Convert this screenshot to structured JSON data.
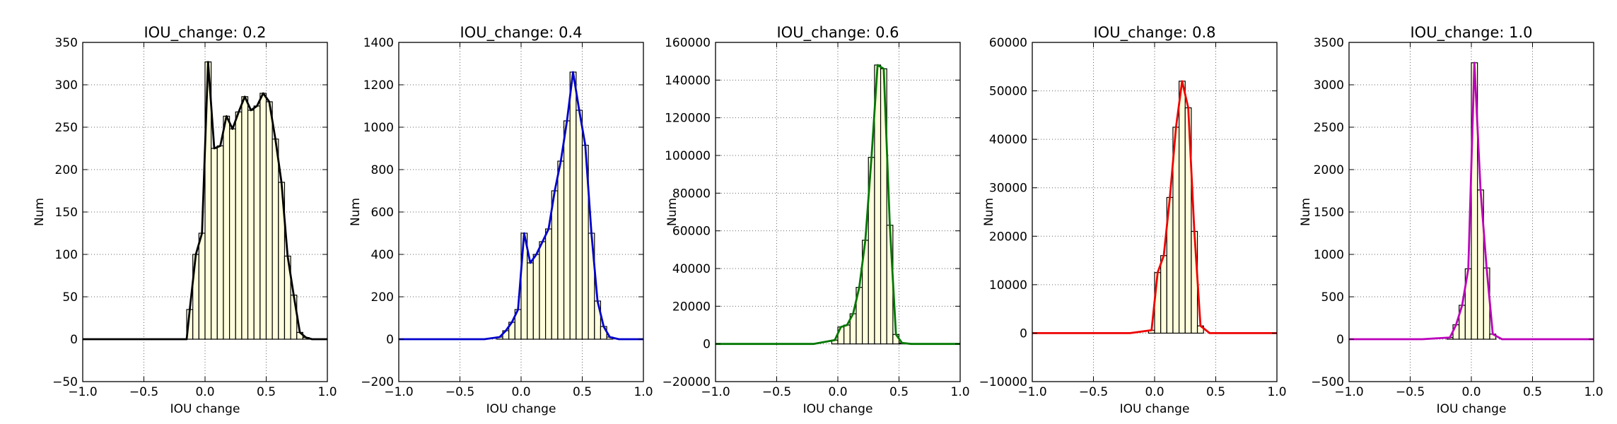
{
  "chart_data": [
    {
      "type": "bar",
      "title": "IOU_change: 0.2",
      "xlabel": "IOU change",
      "ylabel": "Num",
      "xlim": [
        -1.0,
        1.0
      ],
      "ylim": [
        -50,
        350
      ],
      "xticks": [
        -1.0,
        -0.5,
        0.0,
        0.5,
        1.0
      ],
      "xtick_labels": [
        "−1.0",
        "−0.5",
        "0.0",
        "0.5",
        "1.0"
      ],
      "yticks": [
        -50,
        0,
        50,
        100,
        150,
        200,
        250,
        300,
        350
      ],
      "ytick_labels": [
        "−50",
        "0",
        "50",
        "100",
        "150",
        "200",
        "250",
        "300",
        "350"
      ],
      "grid": true,
      "bin_width": 0.05,
      "bin_centers": [
        -0.125,
        -0.075,
        -0.025,
        0.025,
        0.075,
        0.125,
        0.175,
        0.225,
        0.275,
        0.325,
        0.375,
        0.425,
        0.475,
        0.525,
        0.575,
        0.625,
        0.675,
        0.725,
        0.775,
        0.825
      ],
      "values": [
        35,
        100,
        125,
        327,
        225,
        228,
        263,
        248,
        268,
        286,
        270,
        275,
        290,
        280,
        236,
        185,
        98,
        52,
        8,
        2
      ],
      "curve_x": [
        -1.0,
        -0.15,
        -0.125,
        -0.075,
        -0.025,
        0.025,
        0.075,
        0.125,
        0.175,
        0.225,
        0.275,
        0.325,
        0.375,
        0.425,
        0.475,
        0.525,
        0.575,
        0.625,
        0.675,
        0.725,
        0.775,
        0.825,
        0.875,
        1.0
      ],
      "curve_y": [
        0,
        0,
        35,
        100,
        125,
        327,
        225,
        228,
        263,
        248,
        268,
        286,
        270,
        275,
        290,
        280,
        236,
        185,
        98,
        52,
        8,
        2,
        0,
        0
      ],
      "line_color": "#000000",
      "bar_color": "#ffffdd"
    },
    {
      "type": "bar",
      "title": "IOU_change: 0.4",
      "xlabel": "IOU change",
      "ylabel": "Num",
      "xlim": [
        -1.0,
        1.0
      ],
      "ylim": [
        -200,
        1400
      ],
      "xticks": [
        -1.0,
        -0.5,
        0.0,
        0.5,
        1.0
      ],
      "xtick_labels": [
        "−1.0",
        "−0.5",
        "0.0",
        "0.5",
        "1.0"
      ],
      "yticks": [
        -200,
        0,
        200,
        400,
        600,
        800,
        1000,
        1200,
        1400
      ],
      "ytick_labels": [
        "−200",
        "0",
        "200",
        "400",
        "600",
        "800",
        "1000",
        "1200",
        "1400"
      ],
      "grid": true,
      "bin_width": 0.05,
      "bin_centers": [
        -0.175,
        -0.125,
        -0.075,
        -0.025,
        0.025,
        0.075,
        0.125,
        0.175,
        0.225,
        0.275,
        0.325,
        0.375,
        0.425,
        0.475,
        0.525,
        0.575,
        0.625,
        0.675,
        0.725
      ],
      "values": [
        10,
        40,
        80,
        140,
        500,
        360,
        400,
        460,
        520,
        700,
        840,
        1030,
        1260,
        1080,
        915,
        500,
        180,
        60,
        10
      ],
      "curve_x": [
        -1.0,
        -0.3,
        -0.175,
        -0.125,
        -0.075,
        -0.025,
        0.025,
        0.075,
        0.125,
        0.175,
        0.225,
        0.275,
        0.325,
        0.375,
        0.425,
        0.475,
        0.525,
        0.575,
        0.625,
        0.675,
        0.725,
        0.8,
        1.0
      ],
      "curve_y": [
        0,
        0,
        10,
        40,
        80,
        140,
        500,
        360,
        400,
        460,
        520,
        700,
        840,
        1030,
        1260,
        1080,
        915,
        500,
        180,
        60,
        10,
        0,
        0
      ],
      "line_color": "#0000cc",
      "bar_color": "#ffffdd"
    },
    {
      "type": "bar",
      "title": "IOU_change: 0.6",
      "xlabel": "IOU change",
      "ylabel": "Num",
      "xlim": [
        -1.0,
        1.0
      ],
      "ylim": [
        -20000,
        160000
      ],
      "xticks": [
        -1.0,
        -0.5,
        0.0,
        0.5,
        1.0
      ],
      "xtick_labels": [
        "−1.0",
        "−0.5",
        "0.0",
        "0.5",
        "1.0"
      ],
      "yticks": [
        -20000,
        0,
        20000,
        40000,
        60000,
        80000,
        100000,
        120000,
        140000,
        160000
      ],
      "ytick_labels": [
        "−20000",
        "0",
        "20000",
        "40000",
        "60000",
        "80000",
        "100000",
        "120000",
        "140000",
        "160000"
      ],
      "grid": true,
      "bin_width": 0.05,
      "bin_centers": [
        -0.025,
        0.025,
        0.075,
        0.125,
        0.175,
        0.225,
        0.275,
        0.325,
        0.375,
        0.425,
        0.475,
        0.525
      ],
      "values": [
        2000,
        9000,
        10000,
        16000,
        30000,
        55000,
        99000,
        148000,
        146000,
        63000,
        5000,
        500
      ],
      "curve_x": [
        -1.0,
        -0.2,
        -0.025,
        0.025,
        0.075,
        0.125,
        0.175,
        0.225,
        0.275,
        0.325,
        0.375,
        0.425,
        0.475,
        0.525,
        0.6,
        1.0
      ],
      "curve_y": [
        0,
        0,
        2000,
        9000,
        10000,
        16000,
        30000,
        55000,
        99000,
        148000,
        146000,
        63000,
        5000,
        500,
        0,
        0
      ],
      "line_color": "#007700",
      "bar_color": "#ffffdd"
    },
    {
      "type": "bar",
      "title": "IOU_change: 0.8",
      "xlabel": "IOU change",
      "ylabel": "Num",
      "xlim": [
        -1.0,
        1.0
      ],
      "ylim": [
        -10000,
        60000
      ],
      "xticks": [
        -1.0,
        -0.5,
        0.0,
        0.5,
        1.0
      ],
      "xtick_labels": [
        "−1.0",
        "−0.5",
        "0.0",
        "0.5",
        "1.0"
      ],
      "yticks": [
        -10000,
        0,
        10000,
        20000,
        30000,
        40000,
        50000,
        60000
      ],
      "ytick_labels": [
        "−10000",
        "0",
        "10000",
        "20000",
        "30000",
        "40000",
        "50000",
        "60000"
      ],
      "grid": true,
      "bin_width": 0.05,
      "bin_centers": [
        -0.025,
        0.025,
        0.075,
        0.125,
        0.175,
        0.225,
        0.275,
        0.325,
        0.375
      ],
      "values": [
        600,
        12500,
        16000,
        28000,
        42500,
        52000,
        46500,
        21000,
        1500
      ],
      "curve_x": [
        -1.0,
        -0.2,
        -0.025,
        0.025,
        0.075,
        0.125,
        0.175,
        0.225,
        0.275,
        0.325,
        0.375,
        0.45,
        1.0
      ],
      "curve_y": [
        0,
        0,
        600,
        12500,
        16000,
        28000,
        42500,
        52000,
        46500,
        21000,
        1500,
        0,
        0
      ],
      "line_color": "#ee0000",
      "bar_color": "#ffffdd"
    },
    {
      "type": "bar",
      "title": "IOU_change: 1.0",
      "xlabel": "IOU change",
      "ylabel": "Num",
      "xlim": [
        -1.0,
        1.0
      ],
      "ylim": [
        -500,
        3500
      ],
      "xticks": [
        -1.0,
        -0.5,
        0.0,
        0.5,
        1.0
      ],
      "xtick_labels": [
        "−1.0",
        "−0.5",
        "0.0",
        "0.5",
        "1.0"
      ],
      "yticks": [
        -500,
        0,
        500,
        1000,
        1500,
        2000,
        2500,
        3000,
        3500
      ],
      "ytick_labels": [
        "−500",
        "0",
        "500",
        "1000",
        "1500",
        "2000",
        "2500",
        "3000",
        "3500"
      ],
      "grid": true,
      "bin_width": 0.05,
      "bin_centers": [
        -0.175,
        -0.125,
        -0.075,
        -0.025,
        0.025,
        0.075,
        0.125,
        0.175
      ],
      "values": [
        20,
        170,
        400,
        830,
        3260,
        1760,
        840,
        60
      ],
      "curve_x": [
        -1.0,
        -0.4,
        -0.175,
        -0.125,
        -0.075,
        -0.025,
        0.025,
        0.075,
        0.125,
        0.175,
        0.25,
        1.0
      ],
      "curve_y": [
        0,
        0,
        20,
        170,
        400,
        830,
        3260,
        1760,
        840,
        60,
        0,
        0
      ],
      "line_color": "#bb00bb",
      "bar_color": "#ffffdd"
    }
  ]
}
